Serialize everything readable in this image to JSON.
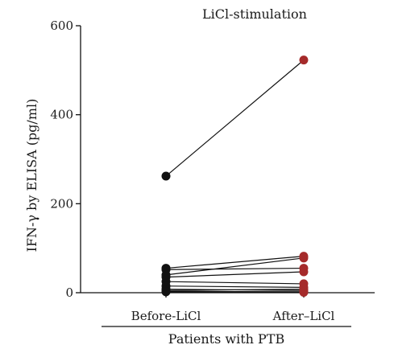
{
  "chart_data": {
    "type": "line",
    "title": "LiCl-stimulation",
    "ylabel": "IFN-γ by ELISA (pg/ml)",
    "xlabel": "Patients with PTB",
    "categories": [
      "Before-LiCl",
      "After–LiCl"
    ],
    "ylim": [
      0,
      600
    ],
    "yticks": [
      0,
      200,
      400,
      600
    ],
    "grid": false,
    "legend": "none",
    "colors": {
      "before": "#111111",
      "after": "#a52a2a",
      "line": "#111111"
    },
    "pairs": [
      [
        262,
        523
      ],
      [
        55,
        82
      ],
      [
        40,
        78
      ],
      [
        52,
        55
      ],
      [
        35,
        47
      ],
      [
        25,
        20
      ],
      [
        15,
        12
      ],
      [
        8,
        5
      ],
      [
        5,
        8
      ],
      [
        3,
        2
      ],
      [
        2,
        1
      ]
    ]
  }
}
